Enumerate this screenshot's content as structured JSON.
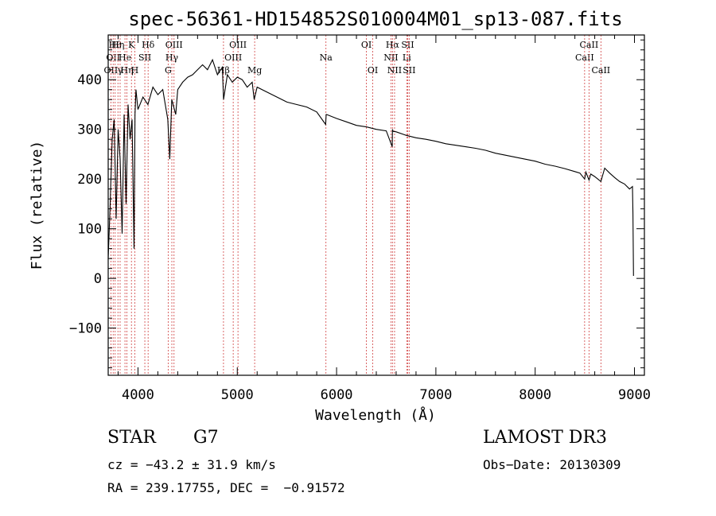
{
  "chart_data": {
    "type": "line",
    "title": "spec-56361-HD154852S010004M01_sp13-087.fits",
    "xlabel": "Wavelength (Å)",
    "ylabel": "Flux (relative)",
    "xlim": [
      3700,
      9100
    ],
    "ylim": [
      -195,
      490
    ],
    "xticks": [
      4000,
      5000,
      6000,
      7000,
      8000,
      9000
    ],
    "xtick_labels": [
      "4000",
      "5000",
      "6000",
      "7000",
      "8000",
      "9000"
    ],
    "yticks": [
      -100,
      0,
      100,
      200,
      300,
      400
    ],
    "ytick_labels": [
      "−100",
      "0",
      "100",
      "200",
      "300",
      "400"
    ],
    "series": [
      {
        "name": "flux",
        "x": [
          3700,
          3720,
          3740,
          3760,
          3780,
          3800,
          3820,
          3840,
          3860,
          3880,
          3900,
          3920,
          3940,
          3960,
          3970,
          3980,
          4000,
          4050,
          4100,
          4150,
          4200,
          4250,
          4300,
          4320,
          4340,
          4380,
          4400,
          4450,
          4500,
          4550,
          4600,
          4650,
          4700,
          4750,
          4800,
          4850,
          4862,
          4900,
          4950,
          5000,
          5050,
          5100,
          5150,
          5170,
          5200,
          5300,
          5400,
          5500,
          5600,
          5700,
          5800,
          5890,
          5895,
          5900,
          6000,
          6100,
          6200,
          6300,
          6400,
          6500,
          6560,
          6563,
          6570,
          6600,
          6700,
          6800,
          6900,
          7000,
          7100,
          7200,
          7300,
          7400,
          7500,
          7600,
          7700,
          7800,
          7900,
          8000,
          8100,
          8200,
          8300,
          8400,
          8450,
          8498,
          8510,
          8542,
          8560,
          8600,
          8662,
          8700,
          8750,
          8800,
          8850,
          8900,
          8950,
          8980,
          8985,
          8990
        ],
        "y": [
          40,
          150,
          280,
          320,
          120,
          300,
          240,
          90,
          330,
          150,
          350,
          280,
          320,
          60,
          330,
          380,
          340,
          365,
          350,
          385,
          370,
          380,
          320,
          240,
          360,
          330,
          380,
          395,
          405,
          410,
          420,
          430,
          420,
          440,
          410,
          425,
          360,
          410,
          395,
          405,
          400,
          385,
          395,
          360,
          385,
          375,
          365,
          355,
          350,
          345,
          335,
          310,
          330,
          330,
          322,
          315,
          308,
          305,
          300,
          297,
          265,
          300,
          296,
          295,
          288,
          283,
          280,
          276,
          271,
          268,
          265,
          262,
          258,
          252,
          248,
          244,
          240,
          236,
          230,
          226,
          221,
          215,
          212,
          200,
          214,
          198,
          210,
          205,
          195,
          222,
          212,
          203,
          195,
          190,
          180,
          185,
          130,
          5
        ]
      }
    ],
    "lines": [
      {
        "wave": 3727,
        "label": "OII",
        "row": 2
      },
      {
        "wave": 3750,
        "label": "OII",
        "row": 1
      },
      {
        "wave": 3770,
        "label": "Hθ",
        "row": 0
      },
      {
        "wave": 3798,
        "label": "Hη",
        "row": 0
      },
      {
        "wave": 3820,
        "label": "γ",
        "row": 2
      },
      {
        "wave": 3869,
        "label": "He",
        "row": 1
      },
      {
        "wave": 3889,
        "label": "Hη",
        "row": 2
      },
      {
        "wave": 3934,
        "label": "K",
        "row": 0
      },
      {
        "wave": 3968,
        "label": "H",
        "row": 2
      },
      {
        "wave": 4069,
        "label": "SII",
        "row": 1
      },
      {
        "wave": 4102,
        "label": "Hδ",
        "row": 0
      },
      {
        "wave": 4304,
        "label": "G",
        "row": 2
      },
      {
        "wave": 4341,
        "label": "Hγ",
        "row": 1
      },
      {
        "wave": 4363,
        "label": "OIII",
        "row": 0
      },
      {
        "wave": 4861,
        "label": "Hβ",
        "row": 2
      },
      {
        "wave": 4959,
        "label": "OIII",
        "row": 1
      },
      {
        "wave": 5007,
        "label": "OIII",
        "row": 0
      },
      {
        "wave": 5175,
        "label": "Mg",
        "row": 2
      },
      {
        "wave": 5893,
        "label": "Na",
        "row": 1
      },
      {
        "wave": 6300,
        "label": "OI",
        "row": 0
      },
      {
        "wave": 6364,
        "label": "OI",
        "row": 2
      },
      {
        "wave": 6548,
        "label": "NII",
        "row": 1
      },
      {
        "wave": 6563,
        "label": "Hα",
        "row": 0
      },
      {
        "wave": 6584,
        "label": "NII",
        "row": 2
      },
      {
        "wave": 6707,
        "label": "Li",
        "row": 1
      },
      {
        "wave": 6716,
        "label": "SII",
        "row": 0
      },
      {
        "wave": 6731,
        "label": "SII",
        "row": 2
      },
      {
        "wave": 8498,
        "label": "CaII",
        "row": 1
      },
      {
        "wave": 8542,
        "label": "CaII",
        "row": 0
      },
      {
        "wave": 8662,
        "label": "CaII",
        "row": 2
      }
    ]
  },
  "info": {
    "class": "STAR",
    "subclass": "G7",
    "survey": "LAMOST DR3",
    "cz": "cz = −43.2 ± 31.9 km/s",
    "obs_date": "Obs−Date: 20130309",
    "coords": "RA = 239.17755, DEC =  −0.91572"
  }
}
